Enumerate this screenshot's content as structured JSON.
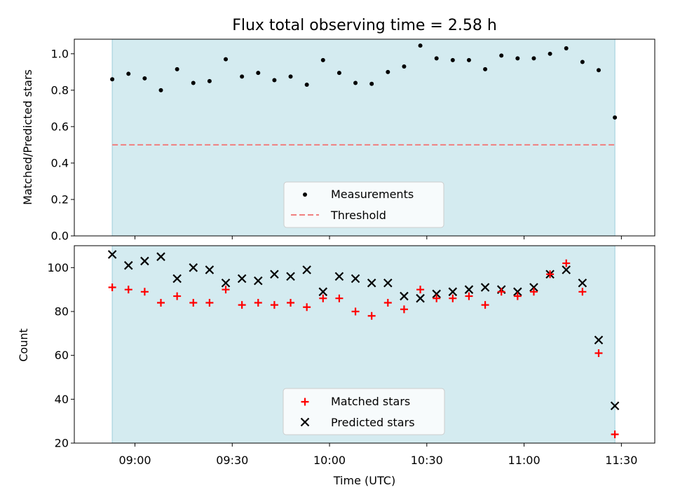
{
  "chart_data": [
    {
      "type": "scatter",
      "title": "Flux total observing time = 2.58 h",
      "xlabel": "",
      "ylabel": "Matched/Predicted stars",
      "ylim": [
        0,
        1.08
      ],
      "yticks": [
        "0.0",
        "0.2",
        "0.4",
        "0.6",
        "0.8",
        "1.0"
      ],
      "legend": {
        "placement": "lower center",
        "entries": [
          "Measurements",
          "Threshold"
        ]
      },
      "threshold": 0.5,
      "shaded_span": [
        "08:53",
        "11:28"
      ],
      "series": [
        {
          "name": "Measurements",
          "marker": "dot",
          "color": "#000000",
          "x": [
            "08:53",
            "08:58",
            "09:03",
            "09:08",
            "09:13",
            "09:18",
            "09:23",
            "09:28",
            "09:33",
            "09:38",
            "09:43",
            "09:48",
            "09:53",
            "09:58",
            "10:03",
            "10:08",
            "10:13",
            "10:18",
            "10:23",
            "10:28",
            "10:33",
            "10:38",
            "10:43",
            "10:48",
            "10:53",
            "10:58",
            "11:03",
            "11:08",
            "11:13",
            "11:18",
            "11:23",
            "11:28"
          ],
          "y": [
            0.86,
            0.89,
            0.865,
            0.8,
            0.915,
            0.84,
            0.85,
            0.97,
            0.875,
            0.895,
            0.855,
            0.875,
            0.83,
            0.965,
            0.895,
            0.84,
            0.835,
            0.9,
            0.93,
            1.045,
            0.975,
            0.965,
            0.965,
            0.915,
            0.99,
            0.975,
            0.975,
            1.0,
            1.03,
            0.955,
            0.91,
            0.65
          ]
        }
      ]
    },
    {
      "type": "scatter",
      "title": "",
      "xlabel": "Time (UTC)",
      "ylabel": "Count",
      "ylim": [
        20,
        110
      ],
      "yticks": [
        "20",
        "40",
        "60",
        "80",
        "100"
      ],
      "xticks": [
        "09:00",
        "09:30",
        "10:00",
        "10:30",
        "11:00",
        "11:30"
      ],
      "legend": {
        "placement": "lower center",
        "entries": [
          "Matched stars",
          "Predicted stars"
        ]
      },
      "shaded_span": [
        "08:53",
        "11:28"
      ],
      "series": [
        {
          "name": "Matched stars",
          "marker": "plus",
          "color": "#ff0000",
          "x": [
            "08:53",
            "08:58",
            "09:03",
            "09:08",
            "09:13",
            "09:18",
            "09:23",
            "09:28",
            "09:33",
            "09:38",
            "09:43",
            "09:48",
            "09:53",
            "09:58",
            "10:03",
            "10:08",
            "10:13",
            "10:18",
            "10:23",
            "10:28",
            "10:33",
            "10:38",
            "10:43",
            "10:48",
            "10:53",
            "10:58",
            "11:03",
            "11:08",
            "11:13",
            "11:18",
            "11:23",
            "11:28"
          ],
          "y": [
            91,
            90,
            89,
            84,
            87,
            84,
            84,
            90,
            83,
            84,
            83,
            84,
            82,
            86,
            86,
            80,
            78,
            84,
            81,
            90,
            86,
            86,
            87,
            83,
            89,
            87,
            89,
            97,
            102,
            89,
            61,
            24
          ]
        },
        {
          "name": "Predicted stars",
          "marker": "x",
          "color": "#000000",
          "x": [
            "08:53",
            "08:58",
            "09:03",
            "09:08",
            "09:13",
            "09:18",
            "09:23",
            "09:28",
            "09:33",
            "09:38",
            "09:43",
            "09:48",
            "09:53",
            "09:58",
            "10:03",
            "10:08",
            "10:13",
            "10:18",
            "10:23",
            "10:28",
            "10:33",
            "10:38",
            "10:43",
            "10:48",
            "10:53",
            "10:58",
            "11:03",
            "11:08",
            "11:13",
            "11:18",
            "11:23",
            "11:28"
          ],
          "y": [
            106,
            101,
            103,
            105,
            95,
            100,
            99,
            93,
            95,
            94,
            97,
            96,
            99,
            89,
            96,
            95,
            93,
            93,
            87,
            86,
            88,
            89,
            90,
            91,
            90,
            89,
            91,
            97,
            99,
            93,
            67,
            37
          ]
        }
      ]
    }
  ],
  "colors": {
    "shade": "#d4ebf0",
    "shade_edge": "#a9d4df",
    "threshold": "#f07f7f",
    "matched": "#ff0000",
    "predicted": "#000000",
    "measurement": "#000000"
  }
}
